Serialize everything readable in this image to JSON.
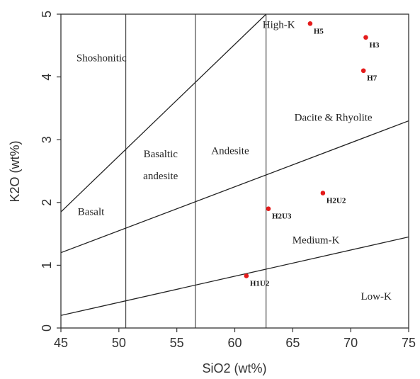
{
  "chart_data": {
    "type": "scatter",
    "title": "",
    "xlabel": "SiO2 (wt%)",
    "ylabel": "K2O (wt%)",
    "xlim": [
      45,
      75
    ],
    "ylim": [
      0,
      5
    ],
    "x_ticks": [
      "45",
      "50",
      "55",
      "60",
      "65",
      "70",
      "75"
    ],
    "y_ticks": [
      "0",
      "1",
      "2",
      "3",
      "4",
      "5"
    ],
    "grid": false,
    "legend": "none",
    "point_color": "#e41b1b",
    "series": [
      {
        "points": [
          {
            "label": "H5",
            "x": 66.5,
            "y": 4.85
          },
          {
            "label": "H3",
            "x": 71.3,
            "y": 4.63
          },
          {
            "label": "H7",
            "x": 71.1,
            "y": 4.1
          },
          {
            "label": "H2U2",
            "x": 67.6,
            "y": 2.15
          },
          {
            "label": "H2U3",
            "x": 62.9,
            "y": 1.9
          },
          {
            "label": "H1U2",
            "x": 61.0,
            "y": 0.83
          }
        ]
      }
    ],
    "boundary_lines": [
      {
        "name": "high-k-shoshonitic",
        "points": [
          [
            45,
            1.85
          ],
          [
            62.7,
            5.0
          ]
        ]
      },
      {
        "name": "medium-high-k",
        "points": [
          [
            45,
            1.2
          ],
          [
            75,
            3.3
          ]
        ]
      },
      {
        "name": "low-medium-k",
        "points": [
          [
            45,
            0.2
          ],
          [
            75,
            1.45
          ]
        ]
      }
    ],
    "vertical_lines": [
      50.6,
      56.6,
      62.7
    ],
    "regions": [
      {
        "label": "Shoshonitic",
        "x": 48.5,
        "y": 4.25
      },
      {
        "label": "High-K",
        "x": 63.8,
        "y": 4.78
      },
      {
        "label": "Dacite & Rhyolite",
        "x": 68.5,
        "y": 3.3
      },
      {
        "label": "Basaltic",
        "x": 53.6,
        "y": 2.72
      },
      {
        "label": "andesite",
        "x": 53.6,
        "y": 2.37
      },
      {
        "label": "Andesite",
        "x": 59.6,
        "y": 2.77
      },
      {
        "label": "Basalt",
        "x": 47.6,
        "y": 1.8
      },
      {
        "label": "Medium-K",
        "x": 67.0,
        "y": 1.35
      },
      {
        "label": "Low-K",
        "x": 72.2,
        "y": 0.45
      }
    ]
  }
}
